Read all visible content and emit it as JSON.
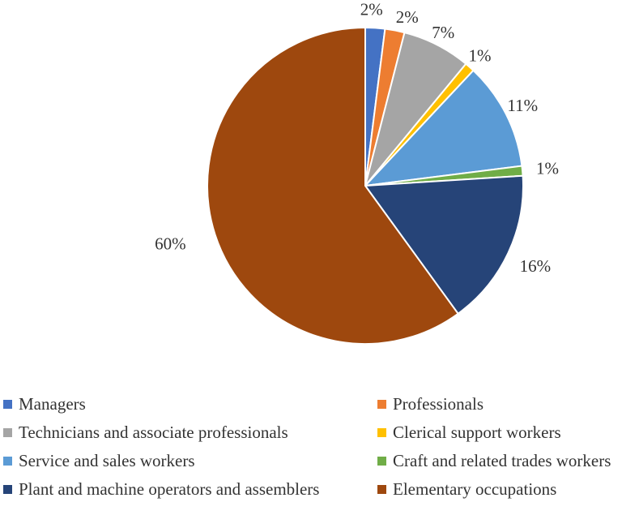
{
  "chart_data": {
    "type": "pie",
    "title": "",
    "slices": [
      {
        "label": "Managers",
        "value": 2,
        "data_label": "2%",
        "color": "#4472C4"
      },
      {
        "label": "Professionals",
        "value": 2,
        "data_label": "2%",
        "color": "#ED7D31"
      },
      {
        "label": "Technicians and associate professionals",
        "value": 7,
        "data_label": "7%",
        "color": "#A5A5A5"
      },
      {
        "label": "Clerical support workers",
        "value": 1,
        "data_label": "1%",
        "color": "#FFC000"
      },
      {
        "label": "Service and sales workers",
        "value": 11,
        "data_label": "11%",
        "color": "#5B9BD5"
      },
      {
        "label": "Craft and related trades workers",
        "value": 1,
        "data_label": "1%",
        "color": "#70AD47"
      },
      {
        "label": "Plant and machine operators and assemblers",
        "value": 16,
        "data_label": "16%",
        "color": "#264478"
      },
      {
        "label": "Elementary occupations",
        "value": 60,
        "data_label": "60%",
        "color": "#9E480E"
      }
    ],
    "start_angle_deg": 0,
    "direction": "clockwise",
    "legend_position": "bottom",
    "legend_columns": 2
  }
}
